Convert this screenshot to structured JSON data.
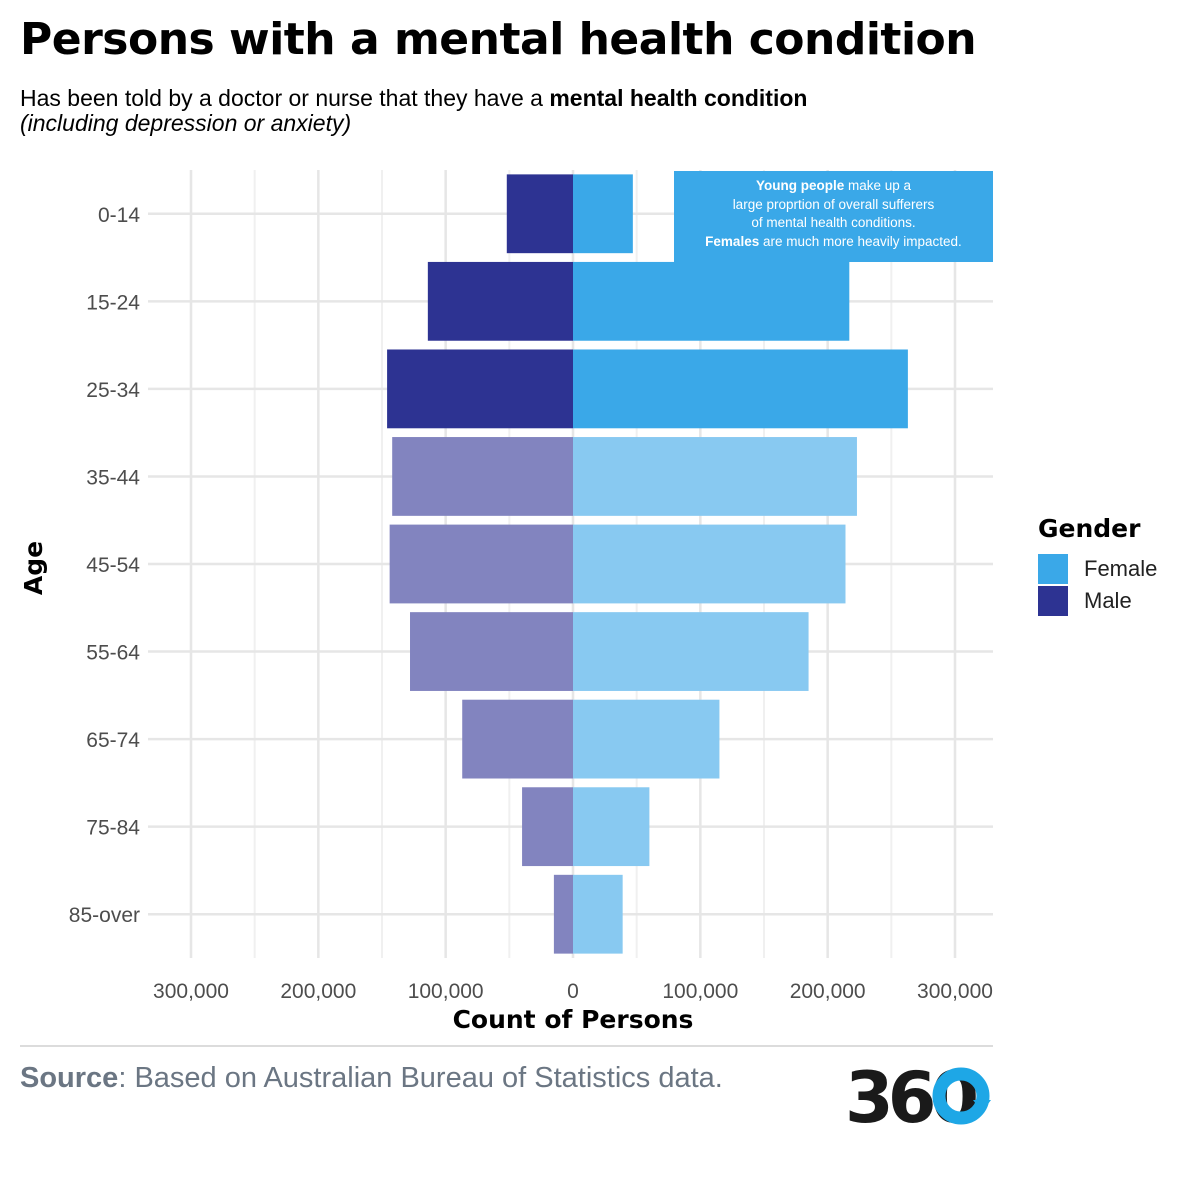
{
  "title": "Persons with a mental health condition",
  "subtitle": {
    "prefix": "Has been told by a doctor or nurse that they have a ",
    "emphasis": "mental health condition",
    "note": "(including depression or anxiety)"
  },
  "annotation": {
    "line1_bold": "Young people",
    "line1_rest": " make up a",
    "line2": "large proprtion of overall sufferers",
    "line3": "of mental health conditions.",
    "line4_bold": "Females",
    "line4_rest": " are much more heavily impacted."
  },
  "legend": {
    "title": "Gender",
    "items": [
      {
        "label": "Female",
        "color": "#3aa8e8"
      },
      {
        "label": "Male",
        "color": "#2d3392"
      }
    ]
  },
  "source": {
    "label": "Source",
    "text": ": Based on Australian Bureau of Statistics data."
  },
  "logo_text": "360",
  "colors": {
    "female": "#3aa8e8",
    "male": "#2d3392",
    "female_light": "#88c9f1",
    "male_light": "#8284bf",
    "logo_dark": "#1a1a1a",
    "logo_accent": "#1ea7e6"
  },
  "chart_data": {
    "type": "bar",
    "orientation": "horizontal-diverging",
    "xlabel": "Count of Persons",
    "ylabel": "Age",
    "categories": [
      "0-14",
      "15-24",
      "25-34",
      "35-44",
      "45-54",
      "55-64",
      "65-74",
      "75-84",
      "85-over"
    ],
    "highlighted_categories": [
      "0-14",
      "15-24",
      "25-34"
    ],
    "series": [
      {
        "name": "Female",
        "values": [
          47000,
          217000,
          263000,
          223000,
          214000,
          185000,
          115000,
          60000,
          39000
        ]
      },
      {
        "name": "Male",
        "values": [
          52000,
          114000,
          146000,
          142000,
          144000,
          128000,
          87000,
          40000,
          15000
        ]
      }
    ],
    "xlim": [
      -330000,
      330000
    ],
    "xticks": [
      -300000,
      -200000,
      -100000,
      0,
      100000,
      200000,
      300000
    ],
    "xtick_labels": [
      "300,000",
      "200,000",
      "100,000",
      "0",
      "100,000",
      "200,000",
      "300,000"
    ],
    "grid": true,
    "legend_position": "right"
  }
}
